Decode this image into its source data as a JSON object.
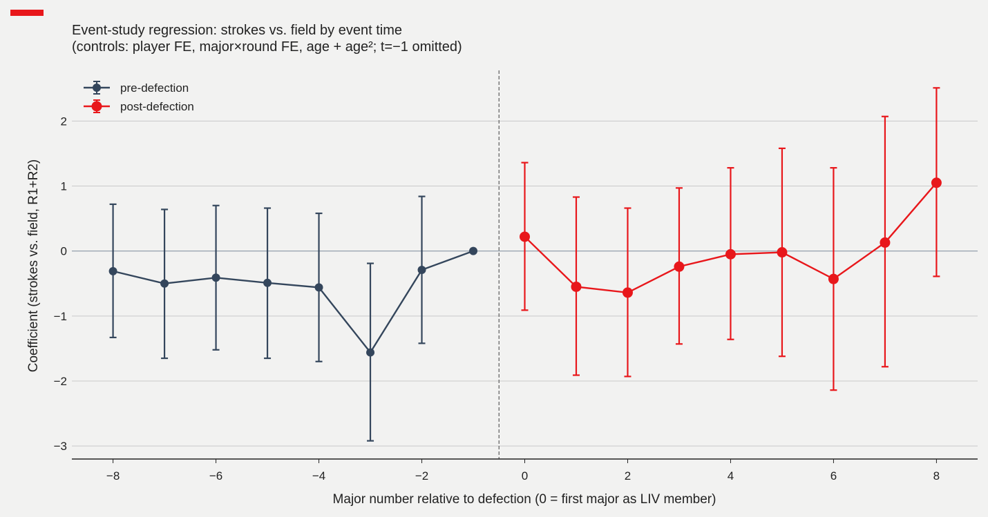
{
  "brand": {
    "accent_color": "#e8171b"
  },
  "chart_data": {
    "type": "line",
    "title_line1": "Event-study regression: strokes vs. field by event time",
    "title_line2": "(controls: player FE, major×round FE, age + age²; t=−1 omitted)",
    "xlabel": "Major number relative to defection (0 = first major as LIV member)",
    "ylabel": "Coefficient (strokes vs. field, R1+R2)",
    "xlim": [
      -8.8,
      8.8
    ],
    "ylim": [
      -3.2,
      2.8
    ],
    "x_ticks": [
      {
        "value": -8,
        "label": "−8"
      },
      {
        "value": -6,
        "label": "−6"
      },
      {
        "value": -4,
        "label": "−4"
      },
      {
        "value": -2,
        "label": "−2"
      },
      {
        "value": 0,
        "label": "0"
      },
      {
        "value": 2,
        "label": "2"
      },
      {
        "value": 4,
        "label": "4"
      },
      {
        "value": 6,
        "label": "6"
      },
      {
        "value": 8,
        "label": "8"
      }
    ],
    "y_ticks": [
      {
        "value": 2,
        "label": "2"
      },
      {
        "value": 1,
        "label": "1"
      },
      {
        "value": 0,
        "label": "0"
      },
      {
        "value": -1,
        "label": "−1"
      },
      {
        "value": -2,
        "label": "−2"
      },
      {
        "value": -3,
        "label": "−3"
      }
    ],
    "grid": "horizontal",
    "zero_line": 0,
    "vertical_marker_x": -0.5,
    "legend_position": "top-left",
    "series": [
      {
        "name": "pre-defection",
        "color": "#34465c",
        "points": [
          {
            "x": -8,
            "y": -0.31,
            "lo": -1.33,
            "hi": 0.72
          },
          {
            "x": -7,
            "y": -0.5,
            "lo": -1.65,
            "hi": 0.64
          },
          {
            "x": -6,
            "y": -0.41,
            "lo": -1.52,
            "hi": 0.7
          },
          {
            "x": -5,
            "y": -0.49,
            "lo": -1.65,
            "hi": 0.66
          },
          {
            "x": -4,
            "y": -0.56,
            "lo": -1.7,
            "hi": 0.58
          },
          {
            "x": -3,
            "y": -1.56,
            "lo": -2.92,
            "hi": -0.19
          },
          {
            "x": -2,
            "y": -0.29,
            "lo": -1.42,
            "hi": 0.84
          },
          {
            "x": -1,
            "y": 0.0,
            "lo": 0.0,
            "hi": 0.0
          }
        ]
      },
      {
        "name": "post-defection",
        "color": "#e8171b",
        "points": [
          {
            "x": 0,
            "y": 0.22,
            "lo": -0.91,
            "hi": 1.36
          },
          {
            "x": 1,
            "y": -0.55,
            "lo": -1.91,
            "hi": 0.83
          },
          {
            "x": 2,
            "y": -0.64,
            "lo": -1.93,
            "hi": 0.66
          },
          {
            "x": 3,
            "y": -0.24,
            "lo": -1.43,
            "hi": 0.97
          },
          {
            "x": 4,
            "y": -0.05,
            "lo": -1.36,
            "hi": 1.28
          },
          {
            "x": 5,
            "y": -0.02,
            "lo": -1.62,
            "hi": 1.58
          },
          {
            "x": 6,
            "y": -0.43,
            "lo": -2.14,
            "hi": 1.28
          },
          {
            "x": 7,
            "y": 0.13,
            "lo": -1.78,
            "hi": 2.07
          },
          {
            "x": 8,
            "y": 1.05,
            "lo": -0.39,
            "hi": 2.51
          }
        ]
      }
    ]
  }
}
